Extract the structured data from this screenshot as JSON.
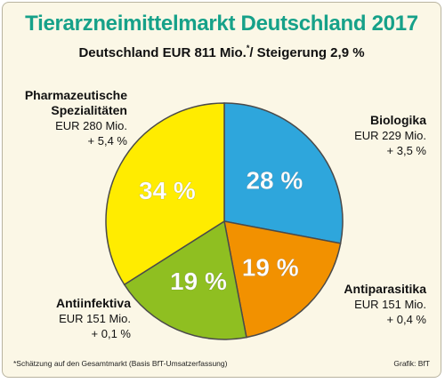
{
  "title": "Tierarzneimittelmarkt Deutschland 2017",
  "subtitle": {
    "main": "Deutschland EUR 811 Mio.",
    "footnote_mark": "*",
    "tail": "/ Steigerung 2,9 %"
  },
  "footnote": "*Schätzung auf den Gesamtmarkt (Basis BfT-Umsatzerfassung)",
  "credit": "Grafik: BfT",
  "chart_data": {
    "type": "pie",
    "title": "Tierarzneimittelmarkt Deutschland 2017",
    "slices": [
      {
        "name": "Biologika",
        "amount": "EUR 229 Mio.",
        "growth": "+ 3,5 %",
        "value": 28,
        "label": "28 %",
        "color": "#2ea6dc"
      },
      {
        "name": "Antiparasitika",
        "amount": "EUR 151 Mio.",
        "growth": "+ 0,4 %",
        "value": 19,
        "label": "19 %",
        "color": "#f29100"
      },
      {
        "name": "Antiinfektiva",
        "amount": "EUR 151 Mio.",
        "growth": "+ 0,1 %",
        "value": 19,
        "label": "19 %",
        "color": "#8fbf21"
      },
      {
        "name": "Pharmazeutische Spezialitäten",
        "amount": "EUR 280 Mio.",
        "growth": "+ 5,4 %",
        "value": 34,
        "label": "34 %",
        "color": "#ffec00"
      }
    ]
  }
}
